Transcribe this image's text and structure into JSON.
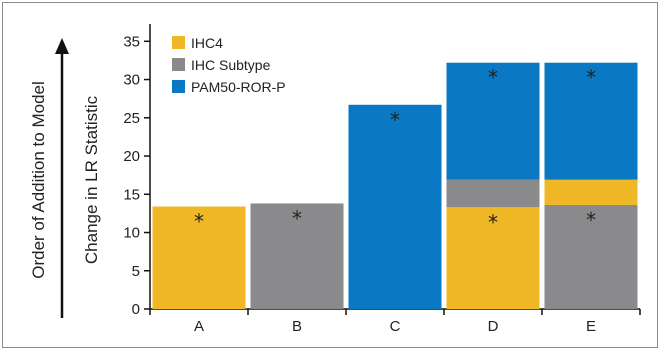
{
  "chart_data": {
    "type": "bar",
    "stacked": true,
    "categories": [
      "A",
      "B",
      "C",
      "D",
      "E"
    ],
    "series": [
      {
        "name": "IHC4",
        "color": "#F0B826",
        "values": [
          13.4,
          0,
          0,
          13.3,
          3.3
        ]
      },
      {
        "name": "IHC Subtype",
        "color": "#8A8A8C",
        "values": [
          0,
          13.8,
          0,
          3.6,
          13.6
        ]
      },
      {
        "name": "PAM50-ROR-P",
        "color": "#0A78C2",
        "values": [
          0,
          0,
          26.7,
          15.3,
          15.3
        ]
      }
    ],
    "stack_order": [
      [
        "IHC4"
      ],
      [
        "IHC Subtype"
      ],
      [
        "PAM50-ROR-P"
      ],
      [
        "IHC4",
        "IHC Subtype",
        "PAM50-ROR-P"
      ],
      [
        "IHC Subtype",
        "IHC4",
        "PAM50-ROR-P"
      ]
    ],
    "significance_markers": [
      {
        "category": "A",
        "series": "IHC4",
        "label": "*"
      },
      {
        "category": "B",
        "series": "IHC Subtype",
        "label": "*"
      },
      {
        "category": "C",
        "series": "PAM50-ROR-P",
        "label": "*"
      },
      {
        "category": "D",
        "series": "PAM50-ROR-P",
        "label": "*"
      },
      {
        "category": "D",
        "series": "IHC4",
        "label": "*"
      },
      {
        "category": "E",
        "series": "PAM50-ROR-P",
        "label": "*"
      },
      {
        "category": "E",
        "series": "IHC Subtype",
        "label": "*"
      }
    ],
    "ylabel": "Change in LR Statistic",
    "outer_label": "Order of Addition to Model",
    "ylim": [
      0,
      37
    ],
    "yticks": [
      0,
      5,
      10,
      15,
      20,
      25,
      30,
      35
    ],
    "grid": false,
    "legend_position": "top-left"
  }
}
